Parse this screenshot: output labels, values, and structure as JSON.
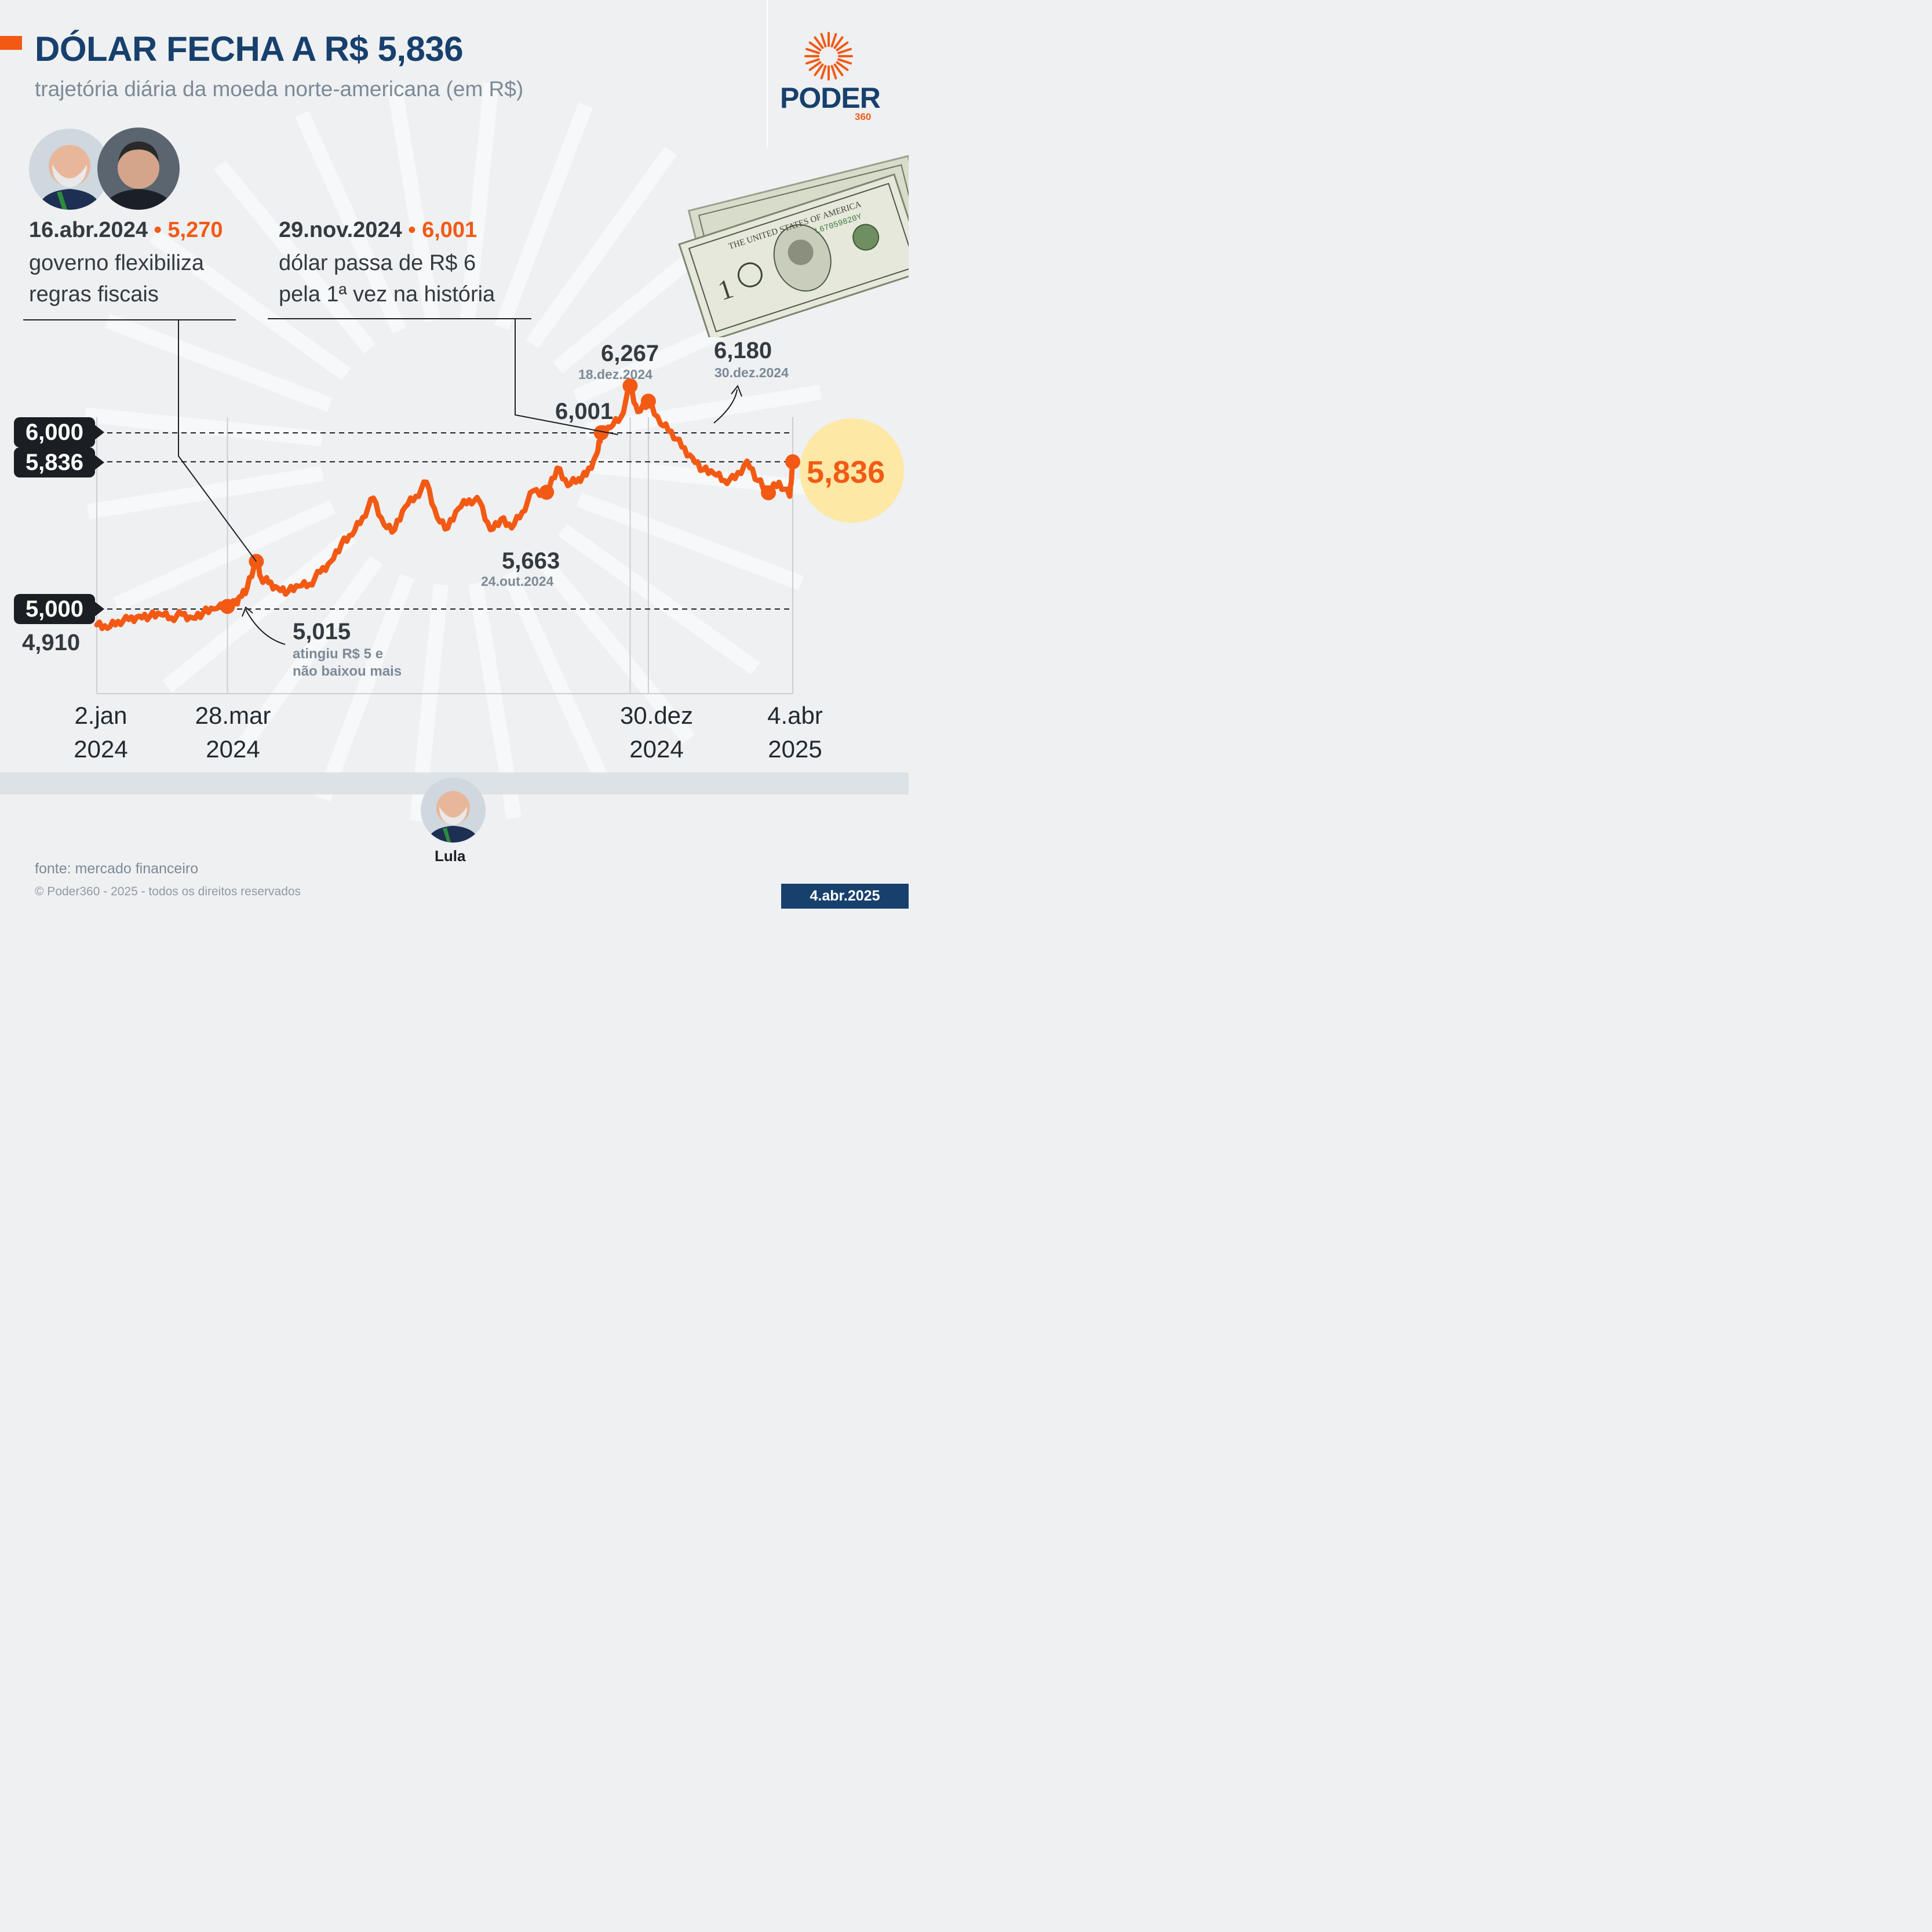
{
  "header": {
    "title": "DÓLAR FECHA A R$ 5,836",
    "subtitle": "trajetória diária da moeda norte-americana (em R$)"
  },
  "logo": {
    "word": "PODER",
    "number": "360",
    "icon": "sunburst-logo-icon"
  },
  "annotations": {
    "fiscal": {
      "date": "16.abr.2024",
      "value": "• 5,270",
      "line1": "governo flexibiliza",
      "line2": "regras fiscais"
    },
    "record": {
      "date": "29.nov.2024",
      "value": "• 6,001",
      "line1": "dólar passa de R$ 6",
      "line2": "pela 1ª vez na história"
    }
  },
  "reference_lines": {
    "r6000": "6,000",
    "r5836": "5,836",
    "r5000": "5,000"
  },
  "points": {
    "start": {
      "value": "4,910"
    },
    "cross5": {
      "value": "5,015",
      "note1": "atingiu R$ 5 e",
      "note2": "não baixou mais"
    },
    "low": {
      "value": "5,663",
      "date": "24.out.2024"
    },
    "first6": {
      "value": "6,001"
    },
    "peak": {
      "value": "6,267",
      "date": "18.dez.2024"
    },
    "yearend": {
      "value": "6,180",
      "date": "30.dez.2024"
    },
    "last": {
      "value": "5,836"
    }
  },
  "x_ticks": [
    {
      "line1": "2.jan",
      "line2": "2024"
    },
    {
      "line1": "28.mar",
      "line2": "2024"
    },
    {
      "line1": "30.dez",
      "line2": "2024"
    },
    {
      "line1": "4.abr",
      "line2": "2025"
    }
  ],
  "footer": {
    "lula_label": "Lula",
    "source": "fonte: mercado financeiro",
    "copyright": "© Poder360 - 2025 - todos os direitos reservados",
    "date": "4.abr.2025"
  },
  "colors": {
    "line": "#f25a14",
    "navy": "#17406d",
    "highlight": "#fde8a6",
    "grey": "#7c8a97"
  },
  "chart_data": {
    "type": "line",
    "title": "DÓLAR FECHA A R$ 5,836",
    "subtitle": "trajetória diária da moeda norte-americana (em R$)",
    "x_tick_labels": [
      "2.jan 2024",
      "28.mar 2024",
      "30.dez 2024",
      "4.abr 2025"
    ],
    "ylim": [
      4.7,
      6.4
    ],
    "reference_values": [
      6.0,
      5.836,
      5.0
    ],
    "series": [
      {
        "x": [
          "2024-01-02",
          "2024-01-09",
          "2024-01-16",
          "2024-01-23",
          "2024-01-30",
          "2024-02-06",
          "2024-02-13",
          "2024-02-20",
          "2024-02-27",
          "2024-03-05",
          "2024-03-12",
          "2024-03-19",
          "2024-03-28",
          "2024-04-02",
          "2024-04-05",
          "2024-04-10",
          "2024-04-16",
          "2024-04-19",
          "2024-04-24",
          "2024-04-30",
          "2024-05-07",
          "2024-05-14",
          "2024-05-21",
          "2024-05-28",
          "2024-06-04",
          "2024-06-11",
          "2024-06-18",
          "2024-06-25",
          "2024-07-02",
          "2024-07-09",
          "2024-07-16",
          "2024-07-23",
          "2024-07-30",
          "2024-08-06",
          "2024-08-13",
          "2024-08-20",
          "2024-08-27",
          "2024-09-03",
          "2024-09-10",
          "2024-09-17",
          "2024-09-24",
          "2024-10-01",
          "2024-10-08",
          "2024-10-15",
          "2024-10-24",
          "2024-10-31",
          "2024-11-07",
          "2024-11-14",
          "2024-11-19",
          "2024-11-26",
          "2024-11-29",
          "2024-12-05",
          "2024-12-12",
          "2024-12-18",
          "2024-12-23",
          "2024-12-30",
          "2025-01-07",
          "2025-01-14",
          "2025-01-21",
          "2025-01-28",
          "2025-02-04",
          "2025-02-11",
          "2025-02-18",
          "2025-02-25",
          "2025-03-05",
          "2025-03-12",
          "2025-03-19",
          "2025-03-26",
          "2025-04-02",
          "2025-04-04"
        ],
        "values": [
          4.91,
          4.89,
          4.93,
          4.94,
          4.96,
          4.96,
          4.97,
          4.95,
          4.97,
          4.95,
          4.98,
          5.0,
          5.015,
          5.03,
          5.07,
          5.12,
          5.27,
          5.18,
          5.15,
          5.12,
          5.1,
          5.13,
          5.14,
          5.21,
          5.27,
          5.37,
          5.42,
          5.52,
          5.63,
          5.48,
          5.45,
          5.58,
          5.64,
          5.72,
          5.52,
          5.46,
          5.57,
          5.62,
          5.61,
          5.45,
          5.51,
          5.46,
          5.55,
          5.67,
          5.663,
          5.8,
          5.7,
          5.74,
          5.76,
          5.88,
          6.001,
          6.03,
          6.09,
          6.267,
          6.12,
          6.18,
          6.05,
          6.01,
          5.92,
          5.86,
          5.79,
          5.77,
          5.73,
          5.74,
          5.84,
          5.73,
          5.66,
          5.72,
          5.64,
          5.836
        ]
      }
    ]
  }
}
